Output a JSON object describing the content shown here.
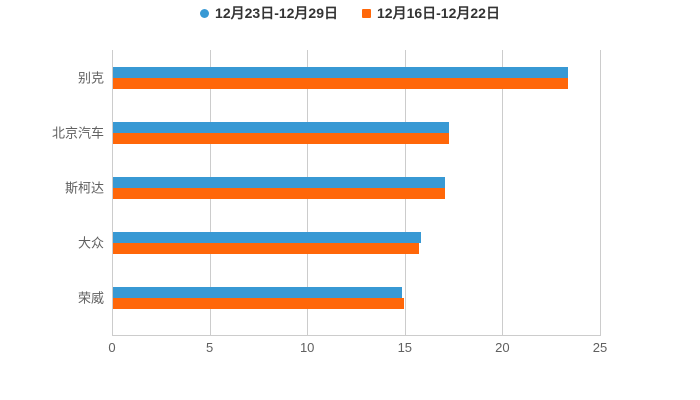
{
  "chart_data": {
    "type": "bar",
    "orientation": "horizontal",
    "title": "",
    "xlabel": "",
    "ylabel": "",
    "categories": [
      "别克",
      "北京汽车",
      "斯柯达",
      "大众",
      "荣威"
    ],
    "series": [
      {
        "name": "12月23日-12月29日",
        "color": "#3899d4",
        "marker": "circle",
        "values": [
          23.3,
          17.2,
          17.0,
          15.8,
          14.8
        ]
      },
      {
        "name": "12月16日-12月22日",
        "color": "#ff6709",
        "marker": "square",
        "values": [
          23.3,
          17.2,
          17.0,
          15.7,
          14.9
        ]
      }
    ],
    "xlim": [
      0,
      25
    ],
    "x_ticks": [
      "0",
      "5",
      "10",
      "15",
      "20",
      "25"
    ],
    "grid": true,
    "legend_position": "top-center",
    "background": "#ffffff",
    "gridline_color": "#cccccc",
    "axis_line_color": "#cccccc",
    "axis_text_color": "#606060",
    "legend_text_color": "#333333"
  }
}
